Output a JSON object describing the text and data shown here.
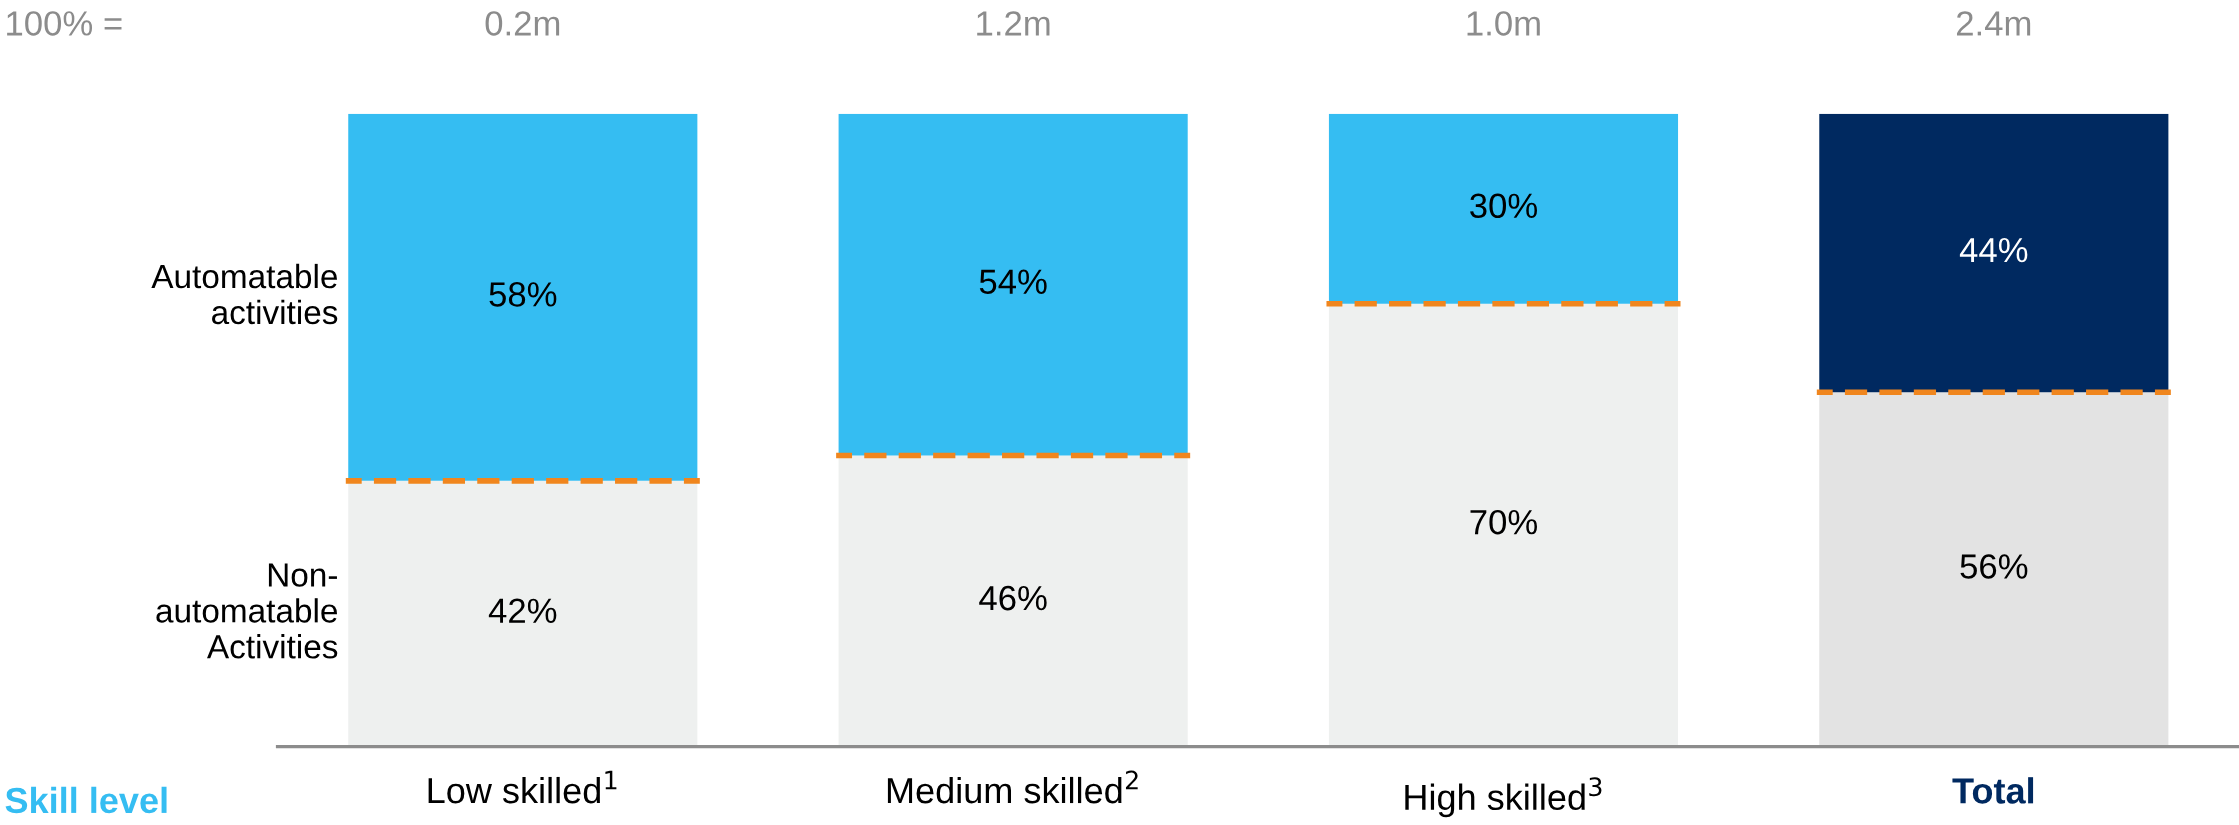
{
  "chart_data": {
    "type": "bar",
    "stacked": true,
    "categories": [
      "Low skilled$^{1}$",
      "Medium skilled$^{2}$",
      "High skilled$^{3}$",
      "Total"
    ],
    "xlabel": "Skill level",
    "series": [
      {
        "name": "Non-\nautomatable\nActivities",
        "colors": [
          "#eef0ef",
          "#eef0ef",
          "#eef0ef",
          "#e3e3e3"
        ],
        "values": [
          42,
          46,
          70,
          56
        ],
        "value_labels": [
          "42%",
          "46%",
          "70%",
          "56%"
        ]
      },
      {
        "name": "Automatable\nactivities",
        "colors": [
          "#35bdf2",
          "#35bdf2",
          "#35bdf2",
          "#002960"
        ],
        "values": [
          58,
          54,
          30,
          44
        ],
        "value_labels": [
          "58%",
          "54%",
          "30%",
          "44%"
        ]
      }
    ],
    "annotations": [
      "100% =",
      "0.2m",
      "1.2m",
      "1.0m",
      "2.4m"
    ]
  }
}
